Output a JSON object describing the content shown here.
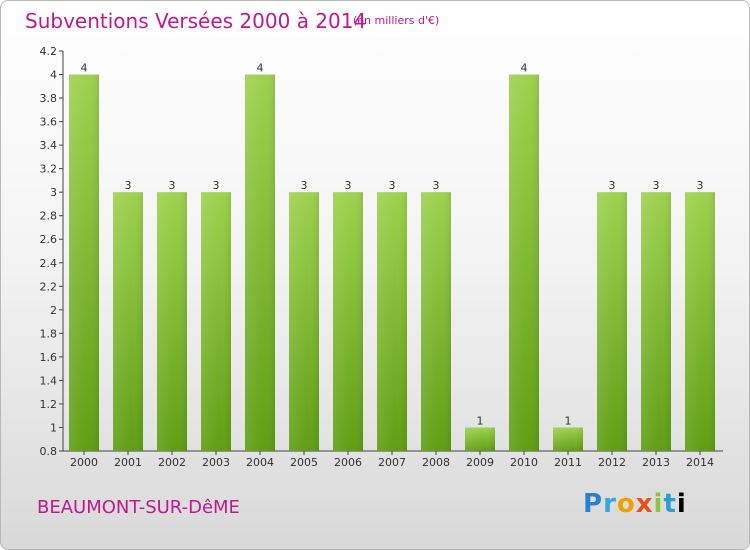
{
  "header": {
    "title": "Subventions Versées 2000 à 2014",
    "unit": "(en milliers d'€)"
  },
  "footer": {
    "city": "BEAUMONT-SUR-DêME",
    "logo_letters": [
      "P",
      "r",
      "o",
      "x",
      "i",
      "t",
      "i"
    ]
  },
  "colors": {
    "accent": "#c0188f",
    "bar_top": "#9ed24f",
    "bar_bottom": "#5f9e14"
  },
  "chart_data": {
    "type": "bar",
    "categories": [
      "2000",
      "2001",
      "2002",
      "2003",
      "2004",
      "2005",
      "2006",
      "2007",
      "2008",
      "2009",
      "2010",
      "2011",
      "2012",
      "2013",
      "2014"
    ],
    "values": [
      4,
      3,
      3,
      3,
      4,
      3,
      3,
      3,
      3,
      1,
      4,
      1,
      3,
      3,
      3
    ],
    "value_labels": [
      "4",
      "3",
      "3",
      "3",
      "4",
      "3",
      "3",
      "3",
      "3",
      "1",
      "4",
      "1",
      "3",
      "3",
      "3"
    ],
    "bar_heights": [
      4,
      3,
      3,
      3,
      4,
      3,
      3,
      3,
      3,
      1,
      4,
      1,
      3,
      3,
      3
    ],
    "ylim": [
      0.8,
      4.2
    ],
    "yticks": [
      "0.8",
      "1",
      "1.2",
      "1.4",
      "1.6",
      "1.8",
      "2",
      "2.2",
      "2.4",
      "2.6",
      "2.8",
      "3",
      "3.2",
      "3.4",
      "3.6",
      "3.8",
      "4",
      "4.2"
    ],
    "grid": false,
    "title": "Subventions Versées 2000 à 2014",
    "xlabel": "",
    "ylabel": ""
  }
}
